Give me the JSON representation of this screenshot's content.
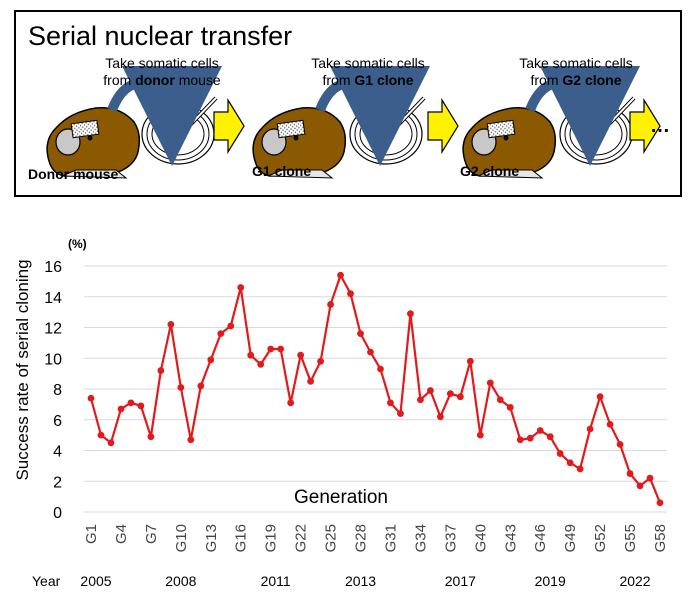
{
  "schema": {
    "title": "Serial nuclear transfer",
    "steps": [
      {
        "take_prefix": "Take somatic cells",
        "from_prefix": "from ",
        "from_bold": "donor",
        "from_suffix": " mouse",
        "mouse_label": "Donor mouse"
      },
      {
        "take_prefix": "Take somatic cells",
        "from_prefix": "from ",
        "from_bold": "G1 clone",
        "from_suffix": "",
        "mouse_label": "G1 clone"
      },
      {
        "take_prefix": "Take somatic cells",
        "from_prefix": "from ",
        "from_bold": "G2 clone",
        "from_suffix": "",
        "mouse_label": "G2 clone"
      }
    ],
    "ellipsis": "…",
    "colors": {
      "mouse": "#8B5A00",
      "arrow_fill": "#FFF200",
      "curve_arrow": "#3B5E8C"
    }
  },
  "chart_data": {
    "type": "line",
    "ylabel": "Success rate of serial cloning",
    "yunit": "(%)",
    "annotation": "Generation",
    "year_label": "Year",
    "ylim": [
      0,
      16
    ],
    "yticks": [
      0,
      2,
      4,
      6,
      8,
      10,
      12,
      14,
      16
    ],
    "grid": true,
    "line_color": "#E31A1C",
    "x": [
      1,
      2,
      3,
      4,
      5,
      6,
      7,
      8,
      9,
      10,
      11,
      12,
      13,
      14,
      15,
      16,
      17,
      18,
      19,
      20,
      21,
      22,
      23,
      24,
      25,
      26,
      27,
      28,
      29,
      30,
      31,
      32,
      33,
      34,
      35,
      36,
      37,
      38,
      39,
      40,
      41,
      42,
      43,
      44,
      45,
      46,
      47,
      48,
      49,
      50,
      51,
      52,
      53,
      54,
      55,
      56,
      57,
      58
    ],
    "values": [
      7.4,
      5.0,
      4.5,
      6.7,
      7.1,
      6.9,
      4.9,
      9.2,
      12.2,
      8.1,
      4.7,
      8.2,
      9.9,
      11.6,
      12.1,
      14.6,
      10.2,
      9.6,
      10.6,
      10.6,
      7.1,
      10.2,
      8.5,
      9.8,
      13.5,
      15.4,
      14.2,
      11.6,
      10.4,
      9.3,
      7.1,
      6.4,
      12.9,
      7.3,
      7.9,
      6.2,
      7.7,
      7.5,
      9.8,
      5.0,
      8.4,
      7.3,
      6.8,
      4.7,
      4.8,
      5.3,
      4.9,
      3.8,
      3.2,
      2.8,
      5.4,
      7.5,
      5.7,
      4.4,
      2.5,
      1.7,
      2.2,
      0.6
    ],
    "tick_labels": [
      {
        "gen": 1,
        "label": "G1"
      },
      {
        "gen": 4,
        "label": "G4"
      },
      {
        "gen": 7,
        "label": "G7"
      },
      {
        "gen": 10,
        "label": "G10"
      },
      {
        "gen": 13,
        "label": "G13"
      },
      {
        "gen": 16,
        "label": "G16"
      },
      {
        "gen": 19,
        "label": "G19"
      },
      {
        "gen": 22,
        "label": "G22"
      },
      {
        "gen": 25,
        "label": "G25"
      },
      {
        "gen": 28,
        "label": "G28"
      },
      {
        "gen": 31,
        "label": "G31"
      },
      {
        "gen": 34,
        "label": "G34"
      },
      {
        "gen": 37,
        "label": "G37"
      },
      {
        "gen": 40,
        "label": "G40"
      },
      {
        "gen": 43,
        "label": "G43"
      },
      {
        "gen": 46,
        "label": "G46"
      },
      {
        "gen": 49,
        "label": "G49"
      },
      {
        "gen": 52,
        "label": "G52"
      },
      {
        "gen": 55,
        "label": "G55"
      },
      {
        "gen": 58,
        "label": "G58"
      }
    ],
    "years": [
      {
        "gen": 1.5,
        "label": "2005"
      },
      {
        "gen": 10,
        "label": "2008"
      },
      {
        "gen": 19.5,
        "label": "2011"
      },
      {
        "gen": 28,
        "label": "2013"
      },
      {
        "gen": 38,
        "label": "2017"
      },
      {
        "gen": 47,
        "label": "2019"
      },
      {
        "gen": 55.5,
        "label": "2022"
      }
    ]
  }
}
